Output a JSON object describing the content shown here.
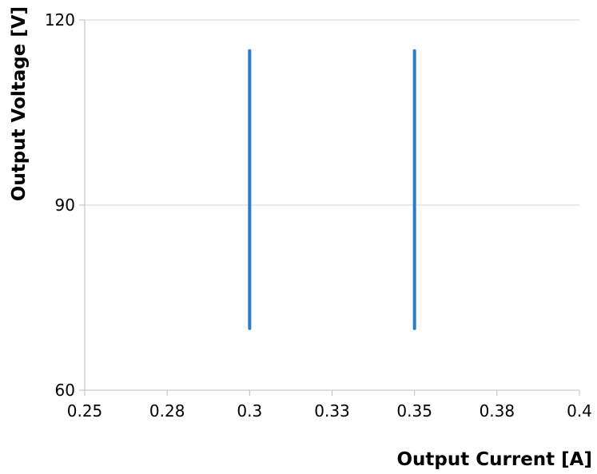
{
  "chart_data": {
    "type": "line",
    "title": "",
    "xlabel": "Output Current [A]",
    "ylabel": "Output Voltage [V]",
    "xlim": [
      0.25,
      0.4
    ],
    "ylim": [
      60,
      120
    ],
    "x_ticks": [
      0.25,
      0.275,
      0.3,
      0.325,
      0.35,
      0.375,
      0.4
    ],
    "x_tick_labels": [
      "0.25",
      "0.28",
      "0.3",
      "0.33",
      "0.35",
      "0.38",
      "0.4"
    ],
    "y_ticks": [
      60,
      90,
      120
    ],
    "y_tick_labels": [
      "60",
      "90",
      "120"
    ],
    "grid": "horizontal",
    "legend": "none",
    "series": [
      {
        "color": "#2a7bca",
        "x": [
          0.3,
          0.3
        ],
        "y": [
          70,
          115
        ]
      },
      {
        "color": "#2a7bca",
        "x": [
          0.35,
          0.35
        ],
        "y": [
          70,
          115
        ]
      }
    ]
  }
}
